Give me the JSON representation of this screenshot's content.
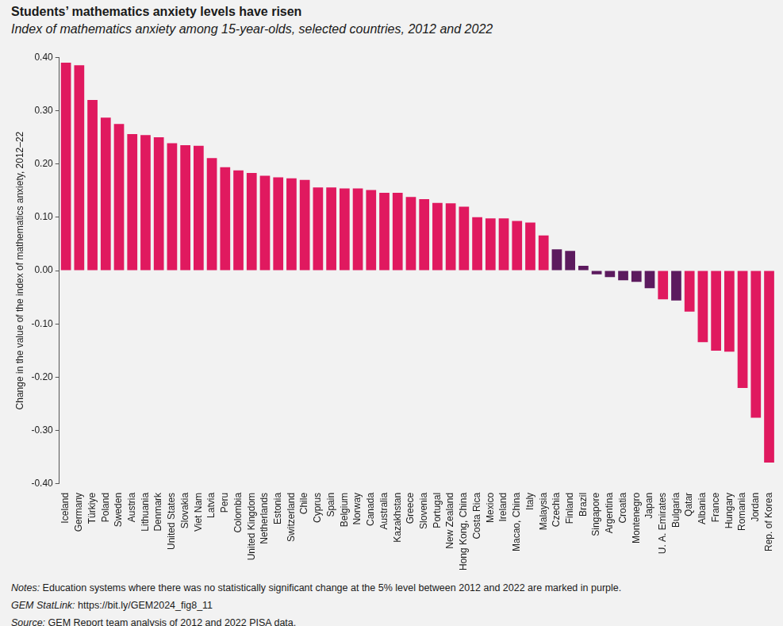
{
  "chart_data": {
    "type": "bar",
    "title": "Students’ mathematics anxiety levels have risen",
    "subtitle": "Index of mathematics anxiety among 15-year-olds, selected countries, 2012 and 2022",
    "y_label": "Change in the value of the index of mathematics anxiety, 2012–22",
    "categories": [
      "Iceland",
      "Germany",
      "Türkiye",
      "Poland",
      "Sweden",
      "Austria",
      "Lithuania",
      "Denmark",
      "United States",
      "Slovakia",
      "Viet Nam",
      "Latvia",
      "Peru",
      "Colombia",
      "United Kingdom",
      "Netherlands",
      "Estonia",
      "Switzerland",
      "Chile",
      "Cyprus",
      "Spain",
      "Belgium",
      "Norway",
      "Canada",
      "Australia",
      "Kazakhstan",
      "Greece",
      "Slovenia",
      "Portugal",
      "New Zealand",
      "Hong Kong, China",
      "Costa Rica",
      "Mexico",
      "Ireland",
      "Macao, China",
      "Italy",
      "Malaysia",
      "Czechia",
      "Finland",
      "Brazil",
      "Singapore",
      "Argentina",
      "Croatia",
      "Montenegro",
      "Japan",
      "U. A. Emirates",
      "Bulgaria",
      "Qatar",
      "Albania",
      "France",
      "Hungary",
      "Romania",
      "Jordan",
      "Rep. of Korea"
    ],
    "values": [
      0.39,
      0.385,
      0.32,
      0.287,
      0.275,
      0.256,
      0.254,
      0.25,
      0.239,
      0.235,
      0.234,
      0.211,
      0.194,
      0.188,
      0.183,
      0.178,
      0.175,
      0.173,
      0.17,
      0.156,
      0.156,
      0.154,
      0.154,
      0.151,
      0.146,
      0.146,
      0.138,
      0.134,
      0.127,
      0.126,
      0.12,
      0.1,
      0.098,
      0.098,
      0.093,
      0.09,
      0.066,
      0.04,
      0.037,
      0.009,
      -0.007,
      -0.012,
      -0.018,
      -0.021,
      -0.033,
      -0.054,
      -0.056,
      -0.077,
      -0.134,
      -0.15,
      -0.152,
      -0.22,
      -0.276,
      -0.36
    ],
    "colors": [
      "#e0195f",
      "#e0195f",
      "#e0195f",
      "#e0195f",
      "#e0195f",
      "#e0195f",
      "#e0195f",
      "#e0195f",
      "#e0195f",
      "#e0195f",
      "#e0195f",
      "#e0195f",
      "#e0195f",
      "#e0195f",
      "#e0195f",
      "#e0195f",
      "#e0195f",
      "#e0195f",
      "#e0195f",
      "#e0195f",
      "#e0195f",
      "#e0195f",
      "#e0195f",
      "#e0195f",
      "#e0195f",
      "#e0195f",
      "#e0195f",
      "#e0195f",
      "#e0195f",
      "#e0195f",
      "#e0195f",
      "#e0195f",
      "#e0195f",
      "#e0195f",
      "#e0195f",
      "#e0195f",
      "#e0195f",
      "#5c1a5e",
      "#5c1a5e",
      "#5c1a5e",
      "#5c1a5e",
      "#5c1a5e",
      "#5c1a5e",
      "#5c1a5e",
      "#5c1a5e",
      "#e0195f",
      "#5c1a5e",
      "#e0195f",
      "#e0195f",
      "#e0195f",
      "#e0195f",
      "#e0195f",
      "#e0195f",
      "#e0195f"
    ],
    "ylim": [
      -0.4,
      0.4
    ],
    "yticks": [
      {
        "value": -0.4,
        "label": "-0.40"
      },
      {
        "value": -0.3,
        "label": "-0.30"
      },
      {
        "value": -0.2,
        "label": "-0.20"
      },
      {
        "value": -0.1,
        "label": "-0.10"
      },
      {
        "value": 0,
        "label": "0.00"
      },
      {
        "value": 0.1,
        "label": "0.10"
      },
      {
        "value": 0.2,
        "label": "0.20"
      },
      {
        "value": 0.3,
        "label": "0.30"
      },
      {
        "value": 0.4,
        "label": "0.40"
      }
    ],
    "grid": false,
    "notes": [
      "Notes: Education systems where there was no statistically significant change at the 5% level between 2012 and 2022 are marked in purple.",
      "GEM StatLink: https://bit.ly/GEM2024_fig8_11",
      "Source: GEM Report team analysis of 2012 and 2022 PISA data."
    ]
  }
}
